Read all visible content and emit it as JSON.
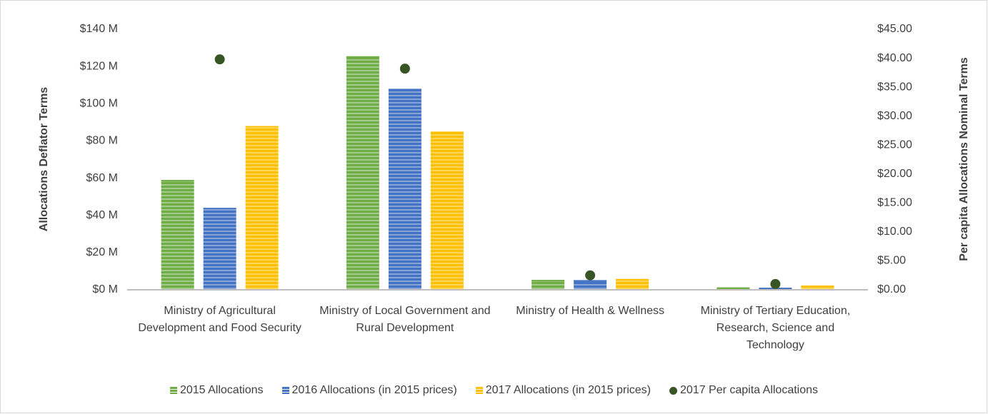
{
  "chart_data": {
    "type": "bar",
    "categories": [
      "Ministry of Agricultural Development and Food Security",
      "Ministry of Local Government and Rural Development",
      "Ministry of Health & Wellness",
      "Ministry of Tertiary Education, Research, Science and Technology"
    ],
    "ylabel": "Allocations Deflator Terms",
    "y2label": "Per capita Allocations Nominal Terms",
    "ylim": [
      0,
      140
    ],
    "yticks": [
      {
        "value": 0,
        "label": "$0 M"
      },
      {
        "value": 20,
        "label": "$20 M"
      },
      {
        "value": 40,
        "label": "$40 M"
      },
      {
        "value": 60,
        "label": "$60 M"
      },
      {
        "value": 80,
        "label": "$80 M"
      },
      {
        "value": 100,
        "label": "$100 M"
      },
      {
        "value": 120,
        "label": "$120 M"
      },
      {
        "value": 140,
        "label": "$140 M"
      }
    ],
    "y2lim": [
      0,
      45
    ],
    "y2ticks": [
      {
        "value": 0,
        "label": "$0.00"
      },
      {
        "value": 5,
        "label": "$5.00"
      },
      {
        "value": 10,
        "label": "$10.00"
      },
      {
        "value": 15,
        "label": "$15.00"
      },
      {
        "value": 20,
        "label": "$20.00"
      },
      {
        "value": 25,
        "label": "$25.00"
      },
      {
        "value": 30,
        "label": "$30.00"
      },
      {
        "value": 35,
        "label": "$35.00"
      },
      {
        "value": 40,
        "label": "$40.00"
      },
      {
        "value": 45,
        "label": "$45.00"
      }
    ],
    "series": [
      {
        "name": "2015 Allocations",
        "color": "#70ad47",
        "values": [
          59,
          125.5,
          5.3,
          1.3
        ]
      },
      {
        "name": "2016 Allocations (in 2015 prices)",
        "color": "#4472c4",
        "values": [
          44,
          108,
          5.2,
          1.1
        ]
      },
      {
        "name": "2017 Allocations (in 2015 prices)",
        "color": "#ffc000",
        "values": [
          88,
          85,
          5.8,
          2.3
        ]
      },
      {
        "name": "2017 Per capita Allocations",
        "color": "#375623",
        "type": "scatter",
        "axis": "y2",
        "values": [
          39.8,
          38.2,
          2.5,
          1.0
        ]
      }
    ],
    "legend": "bottom"
  }
}
